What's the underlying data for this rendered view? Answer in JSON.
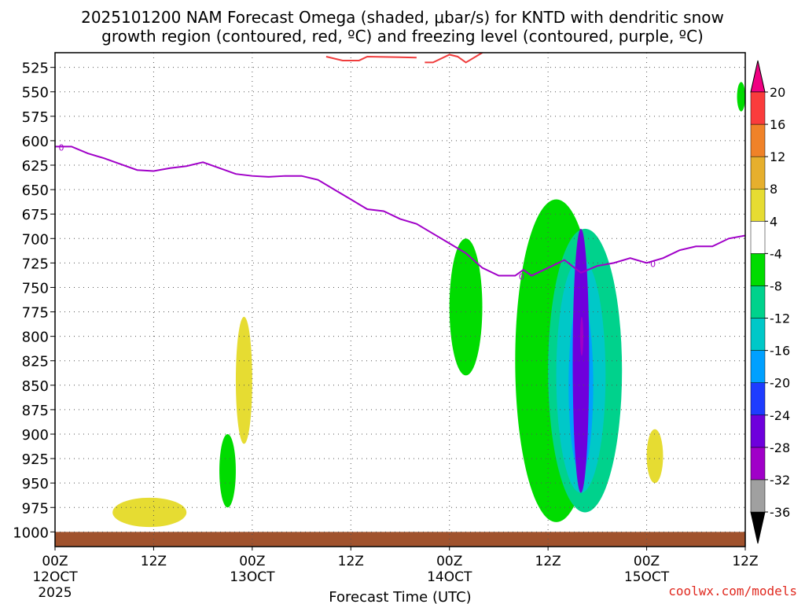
{
  "title_line1": "2025101200 NAM Forecast Omega (shaded, μbar/s) for KNTD with dendritic snow",
  "title_line2": "growth region (contoured, red, ºC) and freezing level (contoured, purple, ºC)",
  "watermark": "coolwx.com/models",
  "chart_data": {
    "type": "heatmap",
    "variable": "Omega (μbar/s)",
    "xlabel": "Forecast Time (UTC)",
    "x_range_hours": [
      0,
      84
    ],
    "y_range_mb": [
      510,
      1015
    ],
    "y_ticks": [
      "525",
      "550",
      "575",
      "600",
      "625",
      "650",
      "675",
      "700",
      "725",
      "750",
      "775",
      "800",
      "825",
      "850",
      "875",
      "900",
      "925",
      "950",
      "975",
      "1000"
    ],
    "x_ticks": [
      {
        "hour": 0,
        "line1": "00Z",
        "line2": "12OCT",
        "line3": "2025"
      },
      {
        "hour": 12,
        "line1": "12Z",
        "line2": "",
        "line3": ""
      },
      {
        "hour": 24,
        "line1": "00Z",
        "line2": "13OCT",
        "line3": ""
      },
      {
        "hour": 36,
        "line1": "12Z",
        "line2": "",
        "line3": ""
      },
      {
        "hour": 48,
        "line1": "00Z",
        "line2": "14OCT",
        "line3": ""
      },
      {
        "hour": 60,
        "line1": "12Z",
        "line2": "",
        "line3": ""
      },
      {
        "hour": 72,
        "line1": "00Z",
        "line2": "15OCT",
        "line3": ""
      },
      {
        "hour": 84,
        "line1": "12Z",
        "line2": "",
        "line3": ""
      }
    ],
    "colorbar_labels": [
      "20",
      "16",
      "12",
      "8",
      "4",
      "-4",
      "-8",
      "-12",
      "-16",
      "-20",
      "-24",
      "-28",
      "-32",
      "-36"
    ],
    "colorbar_levels": [
      {
        "from": -40,
        "to": -36,
        "color": "#000000"
      },
      {
        "from": -36,
        "to": -32,
        "color": "#a0a0a0"
      },
      {
        "from": -32,
        "to": -28,
        "color": "#a000c8"
      },
      {
        "from": -28,
        "to": -24,
        "color": "#6e00dc"
      },
      {
        "from": -24,
        "to": -20,
        "color": "#1e3cff"
      },
      {
        "from": -20,
        "to": -16,
        "color": "#00a0ff"
      },
      {
        "from": -16,
        "to": -12,
        "color": "#00c8c8"
      },
      {
        "from": -12,
        "to": -8,
        "color": "#00d28c"
      },
      {
        "from": -8,
        "to": -4,
        "color": "#00dc00"
      },
      {
        "from": -4,
        "to": 4,
        "color": "#ffffff"
      },
      {
        "from": 4,
        "to": 8,
        "color": "#e6dc32"
      },
      {
        "from": 8,
        "to": 12,
        "color": "#e6af2d"
      },
      {
        "from": 12,
        "to": 16,
        "color": "#f08228"
      },
      {
        "from": 16,
        "to": 20,
        "color": "#fa3c3c"
      },
      {
        "from": 20,
        "to": 24,
        "color": "#f00082"
      }
    ],
    "freezing_level_label": "0",
    "freezing_level": {
      "hours": [
        0,
        2,
        4,
        6,
        8,
        10,
        12,
        14,
        16,
        18,
        20,
        22,
        24,
        26,
        28,
        30,
        32,
        34,
        36,
        38,
        40,
        42,
        44,
        46,
        48,
        50,
        52,
        54,
        56,
        57,
        58,
        60,
        62,
        64,
        66,
        68,
        70,
        72,
        74,
        76,
        78,
        80,
        82,
        84
      ],
      "mb": [
        606,
        606,
        613,
        618,
        624,
        630,
        631,
        628,
        626,
        622,
        628,
        634,
        636,
        637,
        636,
        636,
        640,
        650,
        660,
        670,
        672,
        680,
        685,
        695,
        705,
        715,
        730,
        738,
        738,
        732,
        738,
        730,
        722,
        735,
        728,
        725,
        720,
        725,
        720,
        712,
        708,
        708,
        700,
        697
      ]
    },
    "dgz_red_contour": {
      "hours": [
        33,
        35,
        37,
        38,
        44,
        45,
        46,
        48,
        49,
        50,
        52
      ],
      "mb": [
        514,
        518,
        518,
        514,
        515,
        520,
        520,
        512,
        514,
        520,
        510
      ]
    },
    "omega_regions": [
      {
        "level": -8,
        "hours": [
          56,
          66
        ],
        "mb": [
          660,
          990
        ],
        "note": "broad upward motion column"
      },
      {
        "level": -12,
        "hours": [
          60,
          69
        ],
        "mb": [
          690,
          980
        ]
      },
      {
        "level": -16,
        "hours": [
          61,
          67
        ],
        "mb": [
          720,
          960
        ]
      },
      {
        "level": -20,
        "hours": [
          62.5,
          65.5
        ],
        "mb": [
          760,
          940
        ]
      },
      {
        "level": -28,
        "hours": [
          63,
          65
        ],
        "mb": [
          690,
          960
        ],
        "note": "core"
      },
      {
        "level": -32,
        "hours": [
          64,
          64.2
        ],
        "mb": [
          780,
          820
        ]
      },
      {
        "level": -8,
        "hours": [
          48,
          52
        ],
        "mb": [
          700,
          840
        ]
      },
      {
        "level": 4,
        "hours": [
          22,
          24
        ],
        "mb": [
          780,
          910
        ],
        "note": "weak sinking"
      },
      {
        "level": 4,
        "hours": [
          7,
          16
        ],
        "mb": [
          965,
          995
        ]
      },
      {
        "level": 4,
        "hours": [
          72,
          74
        ],
        "mb": [
          895,
          950
        ]
      },
      {
        "level": -8,
        "hours": [
          20,
          22
        ],
        "mb": [
          900,
          975
        ]
      },
      {
        "level": -8,
        "hours": [
          83,
          84
        ],
        "mb": [
          540,
          570
        ]
      }
    ],
    "terrain_color": "#a0522d",
    "freezing_color": "#a000c8",
    "dgz_color": "#f03c3c",
    "grid": true
  }
}
